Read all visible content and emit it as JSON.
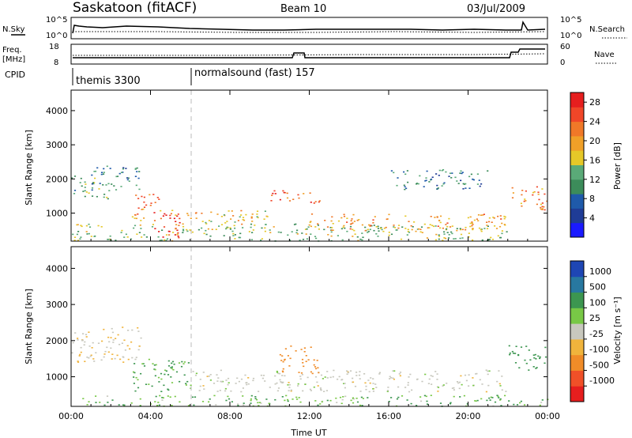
{
  "header": {
    "station": "Saskatoon (fitACF)",
    "beam": "Beam 10",
    "date": "03/Jul/2009"
  },
  "nsky_panel": {
    "left_label": "N.Sky",
    "right_label": "N.Search",
    "left_ticks": [
      "10^5",
      "10^0"
    ],
    "right_ticks": [
      "10^5",
      "10^0"
    ]
  },
  "freq_panel": {
    "left_label_1": "Freq.",
    "left_label_2": "[MHz]",
    "left_ticks": [
      "18",
      "8"
    ],
    "right_label": "Nave",
    "right_ticks": [
      "60",
      "0"
    ]
  },
  "cpid_panel": {
    "label": "CPID",
    "segments": [
      {
        "name": "themis 3300",
        "start_hour": 0
      },
      {
        "name": "normalsound (fast) 157",
        "start_hour": 6
      }
    ]
  },
  "colors": {
    "power_scale": [
      "#1a1aff",
      "#1f3c96",
      "#1f5aaa",
      "#3c8c5a",
      "#5aaa78",
      "#e6c828",
      "#f0a028",
      "#f07828",
      "#f04628",
      "#e61e1e"
    ],
    "velocity_scale": [
      "#e61e1e",
      "#f05028",
      "#f08c28",
      "#f0b43c",
      "#c8c8be",
      "#78c846",
      "#3c9650",
      "#2878a0",
      "#1e46b4"
    ],
    "ground_scatter": "#c8c8be"
  },
  "chart_data": [
    {
      "type": "heatmap",
      "title": "Power",
      "xlabel": "Time UT",
      "ylabel": "Slant Range [km]",
      "xlim": [
        0,
        24
      ],
      "ylim": [
        180,
        4600
      ],
      "x_ticks": [
        "00:00",
        "04:00",
        "08:00",
        "12:00",
        "16:00",
        "20:00",
        "00:00"
      ],
      "y_ticks": [
        1000,
        2000,
        3000,
        4000
      ],
      "colorbar": {
        "label": "Power [dB]",
        "ticks": [
          4,
          8,
          12,
          16,
          20,
          24,
          28
        ],
        "range": [
          0,
          30
        ]
      },
      "scatter_regions": [
        {
          "t0": 0.0,
          "t1": 2.0,
          "r0": 1400,
          "r1": 2100,
          "level": 12
        },
        {
          "t0": 1.0,
          "t1": 3.5,
          "r0": 1700,
          "r1": 2400,
          "level": 10
        },
        {
          "t0": 3.0,
          "t1": 4.5,
          "r0": 800,
          "r1": 1600,
          "level": 22
        },
        {
          "t0": 4.0,
          "t1": 5.5,
          "r0": 300,
          "r1": 1100,
          "level": 28
        },
        {
          "t0": 5.0,
          "t1": 10.0,
          "r0": 500,
          "r1": 1100,
          "level": 18
        },
        {
          "t0": 0.0,
          "t1": 22.0,
          "r0": 200,
          "r1": 700,
          "level": 14
        },
        {
          "t0": 10.0,
          "t1": 12.5,
          "r0": 1300,
          "r1": 1700,
          "level": 24
        },
        {
          "t0": 12.0,
          "t1": 22.0,
          "r0": 500,
          "r1": 1000,
          "level": 20
        },
        {
          "t0": 22.0,
          "t1": 24.0,
          "r0": 1100,
          "r1": 1800,
          "level": 22
        },
        {
          "t0": 16.0,
          "t1": 21.0,
          "r0": 1700,
          "r1": 2300,
          "level": 10
        }
      ]
    },
    {
      "type": "heatmap",
      "title": "Velocity",
      "xlabel": "Time UT",
      "ylabel": "Slant Range [km]",
      "xlim": [
        0,
        24
      ],
      "ylim": [
        180,
        4600
      ],
      "x_ticks": [
        "00:00",
        "04:00",
        "08:00",
        "12:00",
        "16:00",
        "20:00",
        "00:00"
      ],
      "y_ticks": [
        1000,
        2000,
        3000,
        4000
      ],
      "colorbar": {
        "label": "Velocity [m s⁻¹]",
        "ticks": [
          "1000",
          "500",
          "100",
          "25",
          "-25",
          "-100",
          "-500",
          "-1000"
        ]
      },
      "scatter_regions": [
        {
          "t0": 0.0,
          "t1": 3.5,
          "r0": 1400,
          "r1": 2400,
          "level": -20
        },
        {
          "t0": 3.0,
          "t1": 6.0,
          "r0": 600,
          "r1": 1500,
          "level": 120
        },
        {
          "t0": 6.0,
          "t1": 22.0,
          "r0": 600,
          "r1": 1200,
          "level": 0
        },
        {
          "t0": 10.5,
          "t1": 12.5,
          "r0": 1100,
          "r1": 1900,
          "level": -300
        },
        {
          "t0": 0.0,
          "t1": 24.0,
          "r0": 200,
          "r1": 500,
          "level": 80
        },
        {
          "t0": 22.0,
          "t1": 24.0,
          "r0": 1200,
          "r1": 1900,
          "level": 300
        }
      ]
    }
  ]
}
